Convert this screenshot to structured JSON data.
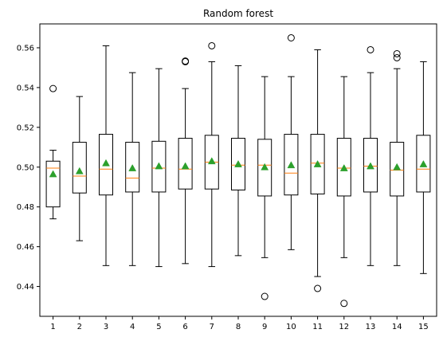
{
  "chart_data": {
    "type": "box",
    "title": "Random forest",
    "xlabel": "",
    "ylabel": "",
    "ylim": [
      0.425,
      0.572
    ],
    "yticks": [
      0.44,
      0.46,
      0.48,
      0.5,
      0.52,
      0.54,
      0.56
    ],
    "ytick_labels": [
      "0.44",
      "0.46",
      "0.48",
      "0.50",
      "0.52",
      "0.54",
      "0.56"
    ],
    "categories": [
      "1",
      "2",
      "3",
      "4",
      "5",
      "6",
      "7",
      "8",
      "9",
      "10",
      "11",
      "12",
      "13",
      "14",
      "15"
    ],
    "grid": false,
    "colors": {
      "box": "#000000",
      "median": "#ff7f0e",
      "mean": "#2ca02c",
      "flier": "#000000"
    },
    "boxes": [
      {
        "label": "1",
        "whislo": 0.474,
        "q1": 0.48,
        "med": 0.4995,
        "q3": 0.503,
        "whishi": 0.5085,
        "mean": 0.4965,
        "fliers": [
          0.5395
        ]
      },
      {
        "label": "2",
        "whislo": 0.463,
        "q1": 0.487,
        "med": 0.4955,
        "q3": 0.5125,
        "whishi": 0.5355,
        "mean": 0.498,
        "fliers": []
      },
      {
        "label": "3",
        "whislo": 0.4505,
        "q1": 0.486,
        "med": 0.499,
        "q3": 0.5165,
        "whishi": 0.561,
        "mean": 0.502,
        "fliers": []
      },
      {
        "label": "4",
        "whislo": 0.4505,
        "q1": 0.4875,
        "med": 0.4945,
        "q3": 0.5125,
        "whishi": 0.5475,
        "mean": 0.4995,
        "fliers": []
      },
      {
        "label": "5",
        "whislo": 0.45,
        "q1": 0.4875,
        "med": 0.4995,
        "q3": 0.513,
        "whishi": 0.5495,
        "mean": 0.5005,
        "fliers": []
      },
      {
        "label": "6",
        "whislo": 0.4515,
        "q1": 0.489,
        "med": 0.499,
        "q3": 0.5145,
        "whishi": 0.5395,
        "mean": 0.5005,
        "fliers": [
          0.553,
          0.5533
        ]
      },
      {
        "label": "7",
        "whislo": 0.45,
        "q1": 0.489,
        "med": 0.5025,
        "q3": 0.516,
        "whishi": 0.553,
        "mean": 0.503,
        "fliers": [
          0.561
        ]
      },
      {
        "label": "8",
        "whislo": 0.4555,
        "q1": 0.4885,
        "med": 0.501,
        "q3": 0.5145,
        "whishi": 0.551,
        "mean": 0.5015,
        "fliers": []
      },
      {
        "label": "9",
        "whislo": 0.4545,
        "q1": 0.4855,
        "med": 0.501,
        "q3": 0.514,
        "whishi": 0.5455,
        "mean": 0.5,
        "fliers": [
          0.435
        ]
      },
      {
        "label": "10",
        "whislo": 0.4585,
        "q1": 0.486,
        "med": 0.497,
        "q3": 0.5165,
        "whishi": 0.5455,
        "mean": 0.501,
        "fliers": [
          0.565
        ]
      },
      {
        "label": "11",
        "whislo": 0.445,
        "q1": 0.4865,
        "med": 0.502,
        "q3": 0.5165,
        "whishi": 0.559,
        "mean": 0.5015,
        "fliers": [
          0.439
        ]
      },
      {
        "label": "12",
        "whislo": 0.4545,
        "q1": 0.4855,
        "med": 0.4995,
        "q3": 0.5145,
        "whishi": 0.5455,
        "mean": 0.4995,
        "fliers": [
          0.4315
        ]
      },
      {
        "label": "13",
        "whislo": 0.4505,
        "q1": 0.4875,
        "med": 0.5005,
        "q3": 0.5145,
        "whishi": 0.5475,
        "mean": 0.5005,
        "fliers": [
          0.559
        ]
      },
      {
        "label": "14",
        "whislo": 0.4505,
        "q1": 0.4855,
        "med": 0.4985,
        "q3": 0.5125,
        "whishi": 0.5495,
        "mean": 0.5,
        "fliers": [
          0.555,
          0.557
        ]
      },
      {
        "label": "15",
        "whislo": 0.4465,
        "q1": 0.4875,
        "med": 0.499,
        "q3": 0.516,
        "whishi": 0.553,
        "mean": 0.5015,
        "fliers": []
      }
    ]
  }
}
